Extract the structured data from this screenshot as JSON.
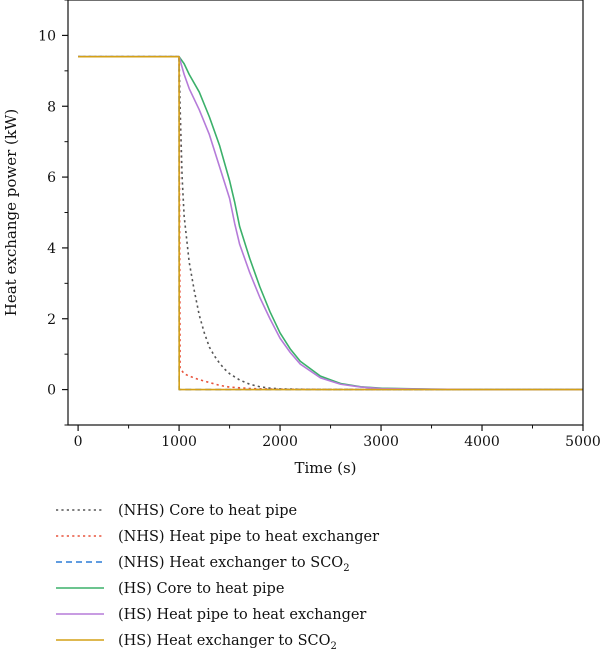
{
  "chart_data": {
    "type": "line",
    "title": "",
    "xlabel": "Time (s)",
    "ylabel": "Heat exchange power (kW)",
    "xlim": [
      -100,
      5000
    ],
    "ylim": [
      -1.0,
      11.0
    ],
    "xticks": [
      0,
      1000,
      2000,
      3000,
      4000,
      5000
    ],
    "xtick_labels": [
      "0",
      "1000",
      "2000",
      "3000",
      "4000",
      "5000"
    ],
    "yticks": [
      0,
      2,
      4,
      6,
      8,
      10
    ],
    "ytick_labels": [
      "0",
      "2",
      "4",
      "6",
      "8",
      "10"
    ],
    "grid": false,
    "legend_position": "below plot",
    "series": [
      {
        "name": "(NHS) Core to heat pipe",
        "legend_main": "(NHS) Core to heat pipe",
        "legend_sub": "",
        "color": "#555555",
        "dash": "dotted",
        "x": [
          0,
          999,
          1000,
          1010,
          1030,
          1050,
          1100,
          1150,
          1200,
          1250,
          1300,
          1350,
          1400,
          1450,
          1500,
          1600,
          1700,
          1800,
          1900,
          2000,
          2200,
          2500,
          3000,
          5000
        ],
        "y": [
          9.4,
          9.4,
          9.4,
          8.0,
          6.0,
          4.9,
          3.6,
          2.8,
          2.1,
          1.6,
          1.2,
          0.95,
          0.75,
          0.58,
          0.45,
          0.27,
          0.15,
          0.08,
          0.04,
          0.02,
          0.01,
          0.0,
          0.0,
          0.0
        ]
      },
      {
        "name": "(NHS) Heat pipe to heat exchanger",
        "legend_main": "(NHS) Heat pipe to heat exchanger",
        "legend_sub": "",
        "color": "#e8533c",
        "dash": "dotted",
        "x": [
          0,
          999,
          1000,
          1010,
          1050,
          1100,
          1200,
          1300,
          1400,
          1500,
          1700,
          2000,
          3000,
          5000
        ],
        "y": [
          9.4,
          9.4,
          9.4,
          0.6,
          0.45,
          0.38,
          0.28,
          0.2,
          0.12,
          0.07,
          0.03,
          0.01,
          0.0,
          0.0
        ]
      },
      {
        "name": "(NHS) Heat exchanger to SCO2",
        "legend_main": "(NHS) Heat exchanger to SCO",
        "legend_sub": "2",
        "color": "#2b7bd6",
        "dash": "dashed",
        "x": [
          0,
          999,
          1000,
          1001,
          5000
        ],
        "y": [
          9.4,
          9.4,
          9.4,
          0.0,
          0.0
        ]
      },
      {
        "name": "(HS) Core to heat pipe",
        "legend_main": "(HS) Core to heat pipe",
        "legend_sub": "",
        "color": "#3bb06a",
        "dash": "solid",
        "x": [
          0,
          1000,
          1050,
          1100,
          1200,
          1300,
          1400,
          1500,
          1550,
          1600,
          1700,
          1800,
          1900,
          2000,
          2100,
          2200,
          2400,
          2600,
          2800,
          3000,
          3500,
          4000,
          5000
        ],
        "y": [
          9.4,
          9.4,
          9.2,
          8.9,
          8.4,
          7.7,
          6.9,
          5.9,
          5.3,
          4.6,
          3.7,
          2.9,
          2.2,
          1.6,
          1.15,
          0.8,
          0.38,
          0.17,
          0.08,
          0.04,
          0.01,
          0.0,
          0.0
        ]
      },
      {
        "name": "(HS) Heat pipe to heat exchanger",
        "legend_main": "(HS) Heat pipe to heat exchanger",
        "legend_sub": "",
        "color": "#b57bd9",
        "dash": "solid",
        "x": [
          0,
          1000,
          1050,
          1100,
          1200,
          1300,
          1400,
          1500,
          1550,
          1600,
          1700,
          1800,
          1900,
          2000,
          2100,
          2200,
          2400,
          2600,
          2800,
          3000,
          3500,
          4000,
          5000
        ],
        "y": [
          9.4,
          9.4,
          8.9,
          8.5,
          7.9,
          7.2,
          6.3,
          5.4,
          4.7,
          4.1,
          3.3,
          2.6,
          2.0,
          1.45,
          1.05,
          0.72,
          0.33,
          0.15,
          0.07,
          0.03,
          0.01,
          0.0,
          0.0
        ]
      },
      {
        "name": "(HS) Heat exchanger to SCO2",
        "legend_main": "(HS) Heat exchanger to SCO",
        "legend_sub": "2",
        "color": "#d4a017",
        "dash": "solid",
        "x": [
          0,
          999,
          1000,
          1001,
          5000
        ],
        "y": [
          9.4,
          9.4,
          9.4,
          0.0,
          0.0
        ]
      }
    ]
  }
}
